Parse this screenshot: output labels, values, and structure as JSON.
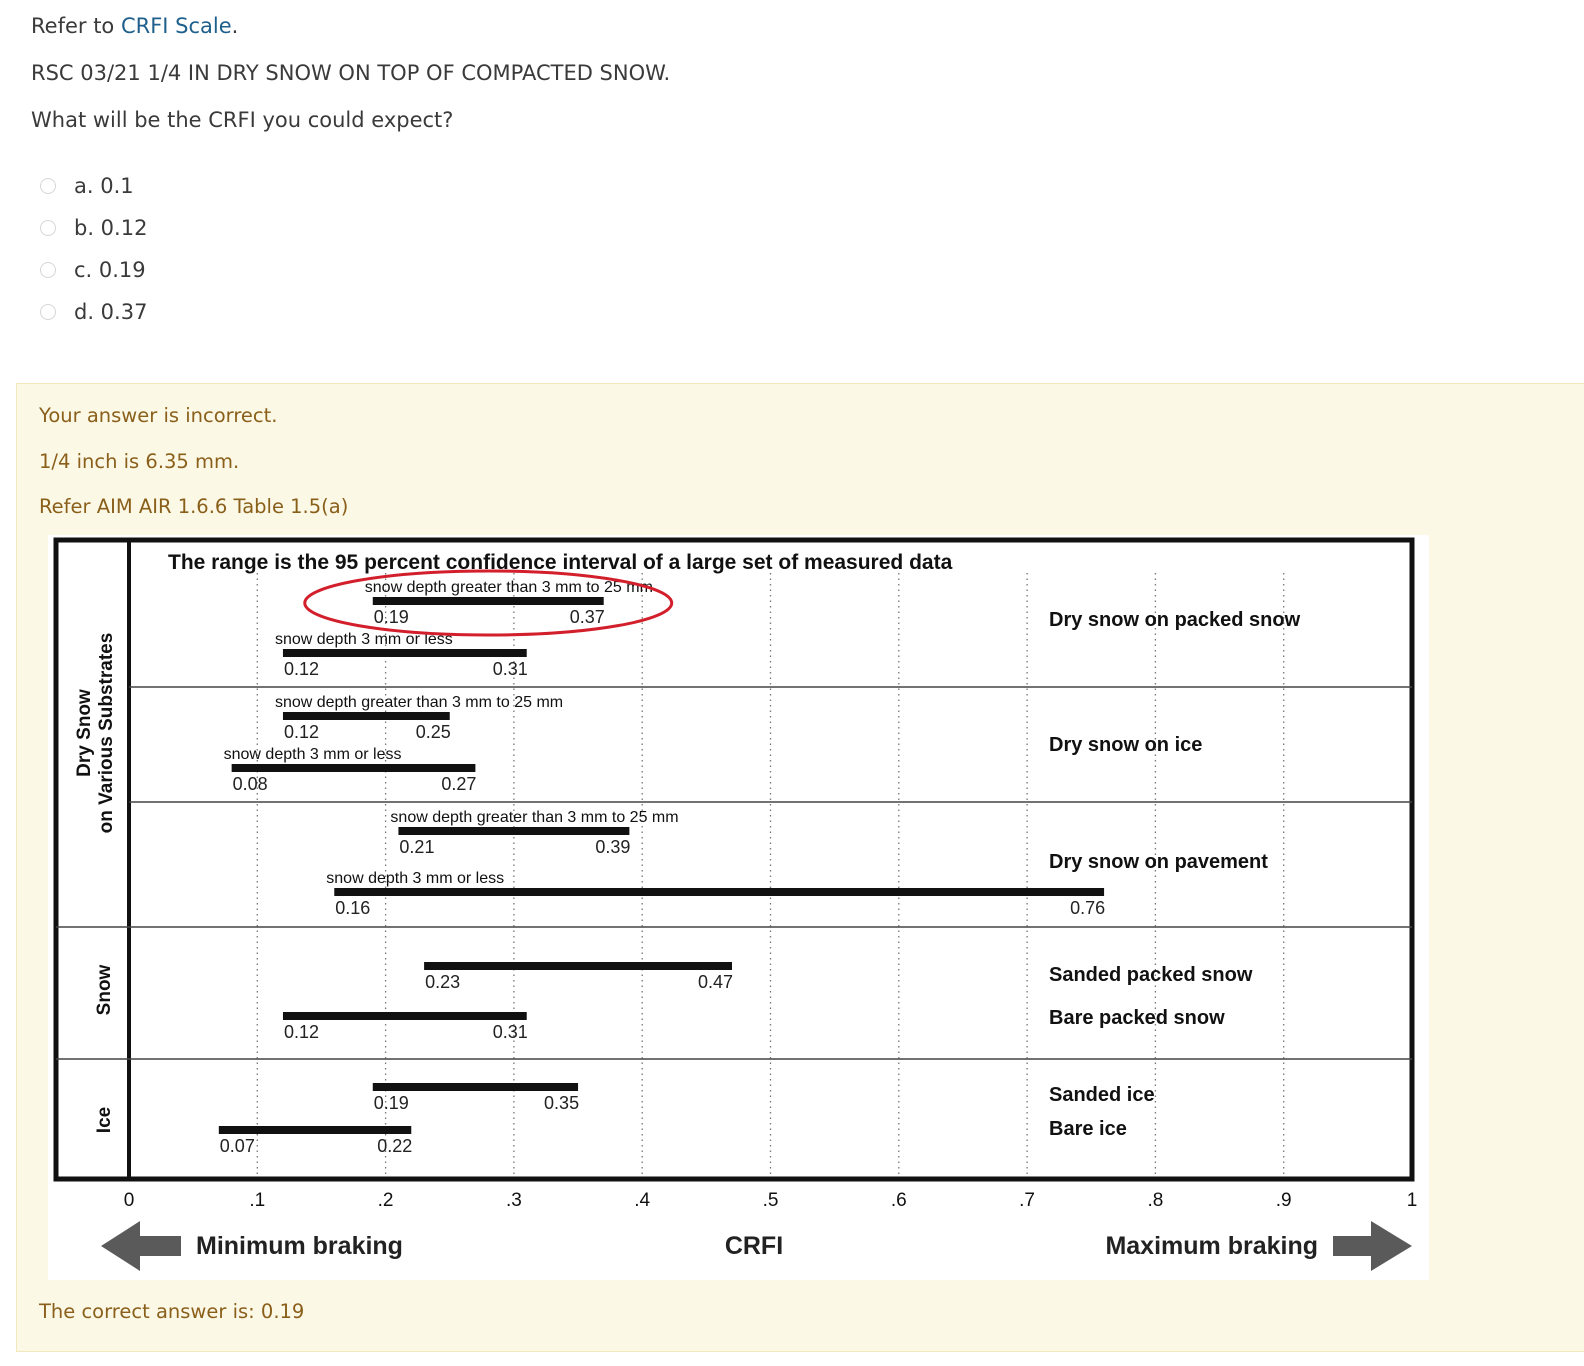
{
  "question": {
    "refer_prefix": "Refer to ",
    "refer_link": "CRFI Scale",
    "refer_suffix": ".",
    "rsc": "RSC 03/21 1/4 IN DRY SNOW ON TOP OF COMPACTED SNOW.",
    "prompt": "What will be the CRFI you could expect?"
  },
  "answers": [
    {
      "label": "a. 0.1"
    },
    {
      "label": "b. 0.12"
    },
    {
      "label": "c. 0.19"
    },
    {
      "label": "d. 0.37"
    }
  ],
  "feedback": {
    "status": "Your answer is incorrect.",
    "conversion": "1/4 inch is 6.35 mm.",
    "reference": "Refer AIM AIR 1.6.6 Table 1.5(a)",
    "correct": "The correct answer is: 0.19"
  },
  "chart_data": {
    "type": "range-bar",
    "title": "The range is the 95 percent confidence interval of a large set of measured data",
    "xlabel": "CRFI",
    "xlim": [
      0,
      1
    ],
    "ticks": [
      "0",
      ".1",
      ".2",
      ".3",
      ".4",
      ".5",
      ".6",
      ".7",
      ".8",
      ".9",
      "1"
    ],
    "tick_values": [
      0,
      0.1,
      0.2,
      0.3,
      0.4,
      0.5,
      0.6,
      0.7,
      0.8,
      0.9,
      1
    ],
    "left_label": "Minimum braking",
    "right_label": "Maximum braking",
    "groups": [
      {
        "name_line1": "Dry Snow",
        "name_line2": "on Various Substrates"
      },
      {
        "name_line1": "Snow",
        "name_line2": ""
      },
      {
        "name_line1": "Ice",
        "name_line2": ""
      }
    ],
    "row_labels": [
      "Dry snow on packed snow",
      "Dry snow on ice",
      "Dry snow on pavement",
      "Sanded packed snow",
      "Bare packed snow",
      "Sanded ice",
      "Bare ice"
    ],
    "bars": [
      {
        "label": "snow depth greater than 3 mm to 25 mm",
        "min": 0.19,
        "max": 0.37,
        "min_label": "0.19",
        "max_label": "0.37",
        "highlighted": true
      },
      {
        "label": "snow depth 3 mm or less",
        "min": 0.12,
        "max": 0.31,
        "min_label": "0.12",
        "max_label": "0.31"
      },
      {
        "label": "snow depth greater than 3 mm to 25 mm",
        "min": 0.12,
        "max": 0.25,
        "min_label": "0.12",
        "max_label": "0.25"
      },
      {
        "label": "snow depth 3 mm or less",
        "min": 0.08,
        "max": 0.27,
        "min_label": "0.08",
        "max_label": "0.27"
      },
      {
        "label": "snow depth greater than 3 mm to 25 mm",
        "min": 0.21,
        "max": 0.39,
        "min_label": "0.21",
        "max_label": "0.39"
      },
      {
        "label": "snow depth 3 mm or less",
        "min": 0.16,
        "max": 0.76,
        "min_label": "0.16",
        "max_label": "0.76"
      },
      {
        "label": "",
        "min": 0.23,
        "max": 0.47,
        "min_label": "0.23",
        "max_label": "0.47"
      },
      {
        "label": "",
        "min": 0.12,
        "max": 0.31,
        "min_label": "0.12",
        "max_label": "0.31"
      },
      {
        "label": "",
        "min": 0.19,
        "max": 0.35,
        "min_label": "0.19",
        "max_label": "0.35"
      },
      {
        "label": "",
        "min": 0.07,
        "max": 0.22,
        "min_label": "0.07",
        "max_label": "0.22"
      }
    ]
  }
}
